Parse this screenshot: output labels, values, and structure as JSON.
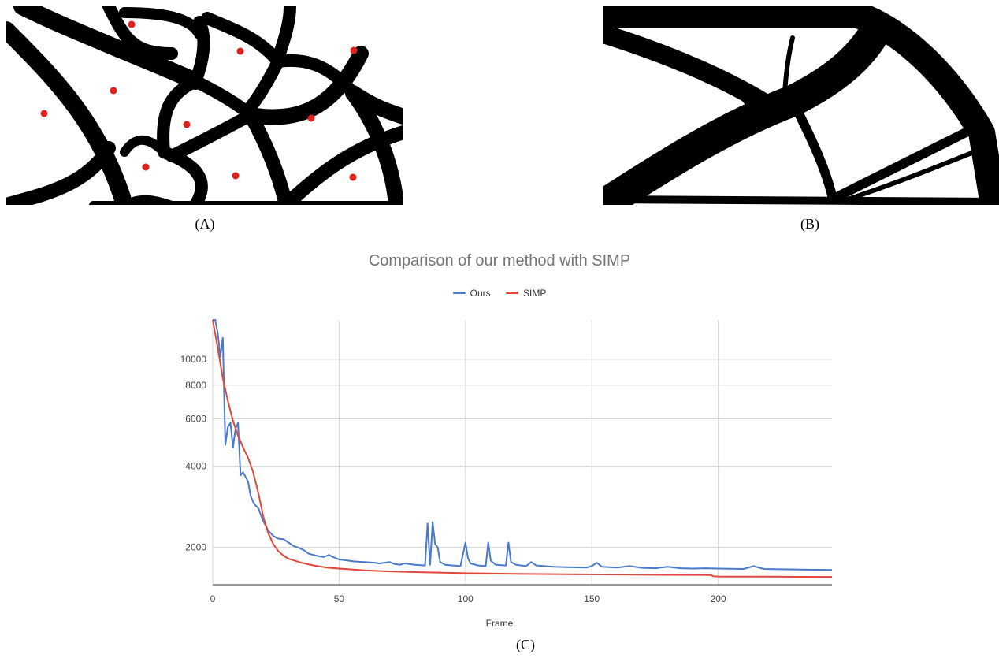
{
  "figure": {
    "caption_a": "(A)",
    "caption_b": "(B)",
    "caption_c": "(C)"
  },
  "panel_a": {
    "description_icon": "topology-voronoi-structure-with-seed-points",
    "seed_color": "#e0201b"
  },
  "panel_b": {
    "description_icon": "topology-truss-structure"
  },
  "chart_data": {
    "type": "line",
    "title": "Comparison of our method with SIMP",
    "xlabel": "Frame",
    "ylabel": "",
    "x_ticks": [
      0,
      50,
      100,
      150,
      200
    ],
    "y_ticks": [
      2000,
      4000,
      6000,
      8000,
      10000
    ],
    "y_scale": "log",
    "xlim": [
      0,
      245
    ],
    "ylim": [
      1450,
      14000
    ],
    "grid": true,
    "legend_position": "top",
    "series": [
      {
        "name": "Ours",
        "color": "#4a7ac9",
        "points": [
          [
            0,
            14000
          ],
          [
            1,
            14000
          ],
          [
            2,
            12500
          ],
          [
            3,
            10200
          ],
          [
            4,
            12000
          ],
          [
            5,
            4800
          ],
          [
            6,
            5600
          ],
          [
            7,
            5800
          ],
          [
            8,
            4700
          ],
          [
            9,
            5500
          ],
          [
            10,
            5800
          ],
          [
            11,
            3700
          ],
          [
            12,
            3800
          ],
          [
            13,
            3650
          ],
          [
            14,
            3500
          ],
          [
            15,
            3100
          ],
          [
            16,
            2950
          ],
          [
            17,
            2850
          ],
          [
            18,
            2800
          ],
          [
            20,
            2500
          ],
          [
            22,
            2300
          ],
          [
            24,
            2200
          ],
          [
            26,
            2150
          ],
          [
            28,
            2140
          ],
          [
            30,
            2080
          ],
          [
            32,
            2020
          ],
          [
            34,
            1990
          ],
          [
            36,
            1950
          ],
          [
            38,
            1890
          ],
          [
            40,
            1870
          ],
          [
            42,
            1850
          ],
          [
            44,
            1840
          ],
          [
            46,
            1870
          ],
          [
            48,
            1830
          ],
          [
            50,
            1800
          ],
          [
            52,
            1790
          ],
          [
            54,
            1780
          ],
          [
            56,
            1770
          ],
          [
            60,
            1760
          ],
          [
            64,
            1750
          ],
          [
            66,
            1740
          ],
          [
            70,
            1760
          ],
          [
            72,
            1730
          ],
          [
            74,
            1720
          ],
          [
            76,
            1740
          ],
          [
            80,
            1720
          ],
          [
            84,
            1710
          ],
          [
            85,
            2450
          ],
          [
            86,
            1720
          ],
          [
            87,
            2480
          ],
          [
            88,
            2050
          ],
          [
            89,
            2000
          ],
          [
            90,
            1760
          ],
          [
            92,
            1720
          ],
          [
            95,
            1710
          ],
          [
            98,
            1700
          ],
          [
            100,
            2080
          ],
          [
            101,
            1820
          ],
          [
            102,
            1740
          ],
          [
            105,
            1710
          ],
          [
            108,
            1700
          ],
          [
            109,
            2080
          ],
          [
            110,
            1780
          ],
          [
            112,
            1720
          ],
          [
            116,
            1710
          ],
          [
            117,
            2080
          ],
          [
            118,
            1760
          ],
          [
            120,
            1720
          ],
          [
            124,
            1700
          ],
          [
            126,
            1760
          ],
          [
            128,
            1710
          ],
          [
            135,
            1690
          ],
          [
            140,
            1685
          ],
          [
            148,
            1680
          ],
          [
            150,
            1700
          ],
          [
            152,
            1750
          ],
          [
            154,
            1690
          ],
          [
            160,
            1680
          ],
          [
            165,
            1700
          ],
          [
            170,
            1675
          ],
          [
            175,
            1670
          ],
          [
            180,
            1690
          ],
          [
            185,
            1670
          ],
          [
            190,
            1665
          ],
          [
            195,
            1670
          ],
          [
            200,
            1665
          ],
          [
            210,
            1660
          ],
          [
            214,
            1700
          ],
          [
            218,
            1660
          ],
          [
            225,
            1655
          ],
          [
            235,
            1650
          ],
          [
            245,
            1645
          ]
        ]
      },
      {
        "name": "SIMP",
        "color": "#e0483a",
        "points": [
          [
            0,
            14000
          ],
          [
            2,
            11000
          ],
          [
            4,
            8500
          ],
          [
            6,
            7000
          ],
          [
            8,
            5900
          ],
          [
            10,
            5200
          ],
          [
            12,
            4700
          ],
          [
            14,
            4300
          ],
          [
            16,
            3800
          ],
          [
            18,
            3200
          ],
          [
            20,
            2600
          ],
          [
            22,
            2250
          ],
          [
            24,
            2050
          ],
          [
            26,
            1930
          ],
          [
            28,
            1860
          ],
          [
            30,
            1810
          ],
          [
            35,
            1750
          ],
          [
            40,
            1710
          ],
          [
            45,
            1680
          ],
          [
            50,
            1665
          ],
          [
            60,
            1640
          ],
          [
            70,
            1625
          ],
          [
            80,
            1615
          ],
          [
            100,
            1600
          ],
          [
            120,
            1590
          ],
          [
            140,
            1585
          ],
          [
            160,
            1582
          ],
          [
            180,
            1578
          ],
          [
            197,
            1575
          ],
          [
            198,
            1560
          ],
          [
            200,
            1555
          ],
          [
            220,
            1553
          ],
          [
            245,
            1550
          ]
        ]
      }
    ]
  }
}
